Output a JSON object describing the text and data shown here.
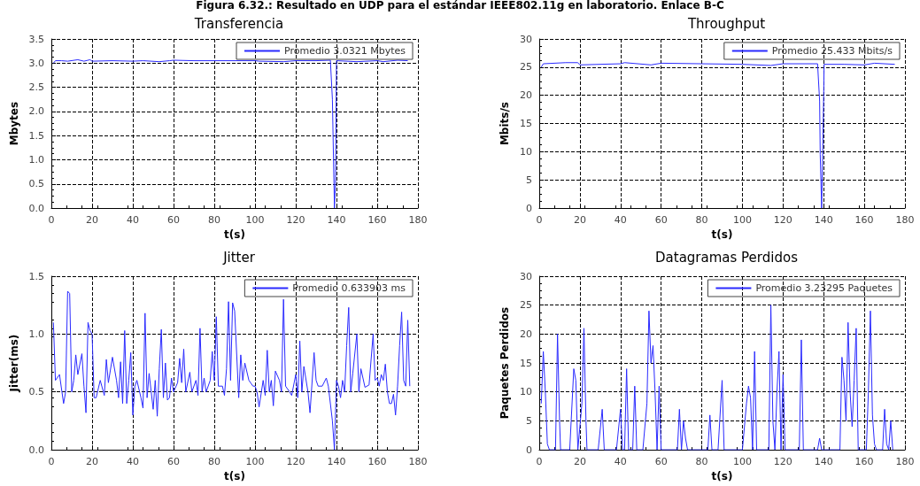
{
  "chart_data": [
    {
      "type": "line",
      "title": "Transferencia",
      "xlabel": "t(s)",
      "ylabel": "Mbytes",
      "annotations": [
        "Figura 6.32.: Resultado en UDP para el estándar IEEE802.11g en laboratorio. Enlace B-C"
      ],
      "xlim": [
        0,
        180
      ],
      "xticks": [
        0,
        20,
        40,
        60,
        80,
        100,
        120,
        140,
        160,
        180
      ],
      "ylim": [
        0,
        3.5
      ],
      "yticks": [
        {
          "value": 0,
          "label": "0.0"
        },
        0.5,
        {
          "value": 1,
          "label": "1.0"
        },
        1.5,
        {
          "value": 2,
          "label": "2.0"
        },
        2.5,
        {
          "value": 3,
          "label": "3.0"
        },
        3.5
      ],
      "grid": true,
      "legend": "top right",
      "marker": "none",
      "series": [
        {
          "name": "Promedio 3.0321 Mbytes",
          "color": "#2a2aff",
          "x": [
            1,
            2,
            5,
            8,
            13,
            16,
            19,
            20,
            30,
            40,
            45,
            53,
            58,
            60,
            70,
            80,
            90,
            100,
            102,
            114,
            120,
            130,
            137,
            138,
            138.5,
            139,
            139.5,
            140,
            150,
            160,
            163,
            170,
            175
          ],
          "values": [
            3.0,
            3.05,
            3.05,
            3.04,
            3.07,
            3.04,
            3.07,
            3.04,
            3.05,
            3.04,
            3.05,
            3.03,
            3.05,
            3.06,
            3.05,
            3.05,
            3.05,
            3.05,
            3.04,
            3.03,
            3.05,
            3.05,
            3.06,
            2.25,
            1.1,
            0,
            0.5,
            3.05,
            3.03,
            3.05,
            3.03,
            3.06,
            3.05
          ]
        }
      ]
    },
    {
      "type": "line",
      "title": "Throughput",
      "xlabel": "t(s)",
      "ylabel": "Mbits/s",
      "xlim": [
        0,
        180
      ],
      "xticks": [
        0,
        20,
        40,
        60,
        80,
        100,
        120,
        140,
        160,
        180
      ],
      "ylim": [
        0,
        30
      ],
      "yticks": [
        0,
        5,
        10,
        15,
        20,
        25,
        30
      ],
      "grid": true,
      "legend": "top right",
      "marker": "none",
      "series": [
        {
          "name": "Promedio 25.433 Mbits/s",
          "color": "#2a2aff",
          "x": [
            1,
            2,
            13,
            19,
            20,
            40,
            42,
            55,
            60,
            80,
            100,
            114,
            120,
            137,
            138,
            138.3,
            139,
            139.5,
            140,
            140.2,
            150,
            160,
            165,
            175
          ],
          "values": [
            25,
            25.6,
            25.8,
            25.8,
            25.4,
            25.6,
            25.8,
            25.4,
            25.7,
            25.6,
            25.5,
            25.3,
            25.6,
            25.6,
            19,
            9.5,
            0,
            10,
            20,
            25.5,
            25.5,
            25.4,
            25.7,
            25.5
          ]
        }
      ]
    },
    {
      "type": "line",
      "title": "Jitter",
      "xlabel": "t(s)",
      "ylabel": "Jitter(ms)",
      "xlim": [
        0,
        180
      ],
      "xticks": [
        0,
        20,
        40,
        60,
        80,
        100,
        120,
        140,
        160,
        180
      ],
      "ylim": [
        0,
        1.5
      ],
      "yticks": [
        {
          "value": 0,
          "label": "0.0"
        },
        0.5,
        {
          "value": 1,
          "label": "1.0"
        },
        1.5
      ],
      "grid": true,
      "legend": "top right",
      "marker": "none",
      "series": [
        {
          "name": "Promedio 0.633903 ms",
          "color": "#2a2aff",
          "x": [
            1,
            2,
            4,
            6,
            7,
            8,
            9,
            10,
            11,
            12,
            13,
            15,
            16,
            17,
            18,
            19,
            20,
            21,
            22,
            24,
            26,
            27,
            28,
            30,
            32,
            33,
            34,
            35,
            36,
            37,
            38,
            39,
            40,
            41,
            42,
            44,
            45,
            46,
            47,
            48,
            50,
            51,
            52,
            53,
            54,
            55,
            56,
            57,
            58,
            59,
            60,
            62,
            63,
            64,
            65,
            66,
            68,
            69,
            71,
            72,
            73,
            74,
            75,
            76,
            78,
            79,
            80,
            81,
            82,
            84,
            85,
            86,
            87,
            88,
            89,
            90,
            92,
            93,
            94,
            95,
            97,
            99,
            100,
            101,
            102,
            104,
            105,
            106,
            107,
            108,
            109,
            110,
            112,
            113,
            114,
            115,
            117,
            118,
            120,
            121,
            122,
            123,
            124,
            126,
            127,
            129,
            130,
            131,
            133,
            135,
            136,
            138,
            139,
            140,
            141,
            142,
            143,
            144,
            145,
            146,
            147,
            148,
            150,
            151,
            152,
            154,
            156,
            158,
            159,
            160,
            161,
            162,
            163,
            164,
            165,
            166,
            167,
            168,
            169,
            170,
            171,
            172,
            173,
            174,
            175,
            176
          ],
          "values": [
            1.1,
            0.6,
            0.65,
            0.4,
            0.5,
            1.37,
            1.35,
            0.5,
            0.6,
            0.82,
            0.65,
            0.83,
            0.55,
            0.32,
            1.1,
            1.03,
            1.0,
            0.45,
            0.45,
            0.6,
            0.47,
            0.78,
            0.58,
            0.8,
            0.6,
            0.45,
            0.76,
            0.4,
            1.03,
            0.4,
            0.6,
            0.84,
            0.3,
            0.55,
            0.6,
            0.45,
            0.36,
            1.18,
            0.45,
            0.66,
            0.35,
            0.6,
            0.29,
            0.7,
            1.04,
            0.45,
            0.75,
            0.43,
            0.45,
            0.62,
            0.5,
            0.58,
            0.79,
            0.58,
            0.87,
            0.5,
            0.67,
            0.5,
            0.6,
            0.47,
            1.05,
            0.5,
            0.62,
            0.5,
            0.6,
            0.85,
            0.6,
            1.15,
            0.55,
            0.55,
            0.47,
            0.7,
            1.28,
            0.6,
            1.27,
            1.2,
            0.45,
            0.82,
            0.6,
            0.75,
            0.6,
            0.55,
            0.55,
            0.5,
            0.37,
            0.6,
            0.47,
            0.86,
            0.5,
            0.6,
            0.38,
            0.68,
            0.6,
            0.5,
            1.3,
            0.55,
            0.5,
            0.47,
            0.65,
            0.45,
            0.94,
            0.5,
            0.72,
            0.5,
            0.32,
            0.84,
            0.6,
            0.55,
            0.55,
            0.62,
            0.55,
            0.25,
            0,
            0.6,
            0.55,
            0.45,
            0.6,
            0.5,
            0.9,
            1.23,
            0.5,
            0.66,
            1.0,
            0.5,
            0.7,
            0.54,
            0.56,
            1.0,
            0.6,
            0.62,
            0.55,
            0.65,
            0.6,
            0.74,
            0.5,
            0.4,
            0.4,
            0.48,
            0.3,
            0.55,
            0.9,
            1.19,
            0.6,
            0.55,
            1.12,
            0.55
          ]
        }
      ]
    },
    {
      "type": "line",
      "title": "Datagramas Perdidos",
      "xlabel": "t(s)",
      "ylabel": "Paquetes Perdidos",
      "xlim": [
        0,
        180
      ],
      "xticks": [
        0,
        20,
        40,
        60,
        80,
        100,
        120,
        140,
        160,
        180
      ],
      "ylim": [
        0,
        30
      ],
      "yticks": [
        0,
        5,
        10,
        15,
        20,
        25,
        30
      ],
      "grid": true,
      "legend": "top right",
      "marker": "none",
      "series": [
        {
          "name": "Promedio 3.23295 Paquetes",
          "color": "#2a2aff",
          "x": [
            1,
            2,
            3,
            4,
            5,
            8,
            9,
            10,
            10.5,
            15,
            17,
            18,
            19,
            21,
            22,
            23,
            23.5,
            29,
            31,
            32,
            38,
            40,
            41,
            42,
            43,
            44,
            46,
            47,
            48,
            51,
            53,
            54,
            55,
            56,
            57,
            58,
            59,
            60,
            68,
            69,
            70,
            71,
            72,
            73,
            83,
            84,
            85,
            88,
            90,
            91,
            100,
            102,
            103,
            104,
            105,
            106,
            107,
            113,
            114,
            115,
            116,
            117,
            118,
            119,
            120,
            121,
            128,
            129,
            130,
            137,
            138,
            139,
            148,
            149,
            150,
            151,
            152,
            153,
            154,
            155,
            156,
            157,
            161,
            162,
            163,
            164,
            165,
            166,
            169,
            170,
            171,
            172,
            173,
            174
          ],
          "values": [
            8,
            17,
            10,
            1,
            0,
            0,
            20,
            5,
            0,
            0,
            14,
            12,
            0,
            8,
            21,
            5,
            0,
            0,
            7,
            0,
            0,
            7,
            0,
            0,
            14,
            0,
            0,
            11,
            0,
            0,
            8,
            24,
            15,
            18,
            10,
            0,
            11,
            0,
            0,
            7,
            0,
            5,
            2,
            0,
            0,
            6,
            0,
            0,
            12,
            0,
            0,
            8,
            11,
            9,
            0,
            17,
            0,
            0,
            25,
            5,
            0,
            10,
            17,
            0,
            13,
            0,
            0,
            19,
            0,
            0,
            2,
            0,
            0,
            16,
            12,
            5,
            22,
            10,
            4,
            12,
            21,
            0,
            0,
            10,
            24,
            6,
            1,
            0,
            0,
            7,
            1,
            0,
            5,
            0
          ]
        }
      ]
    }
  ]
}
